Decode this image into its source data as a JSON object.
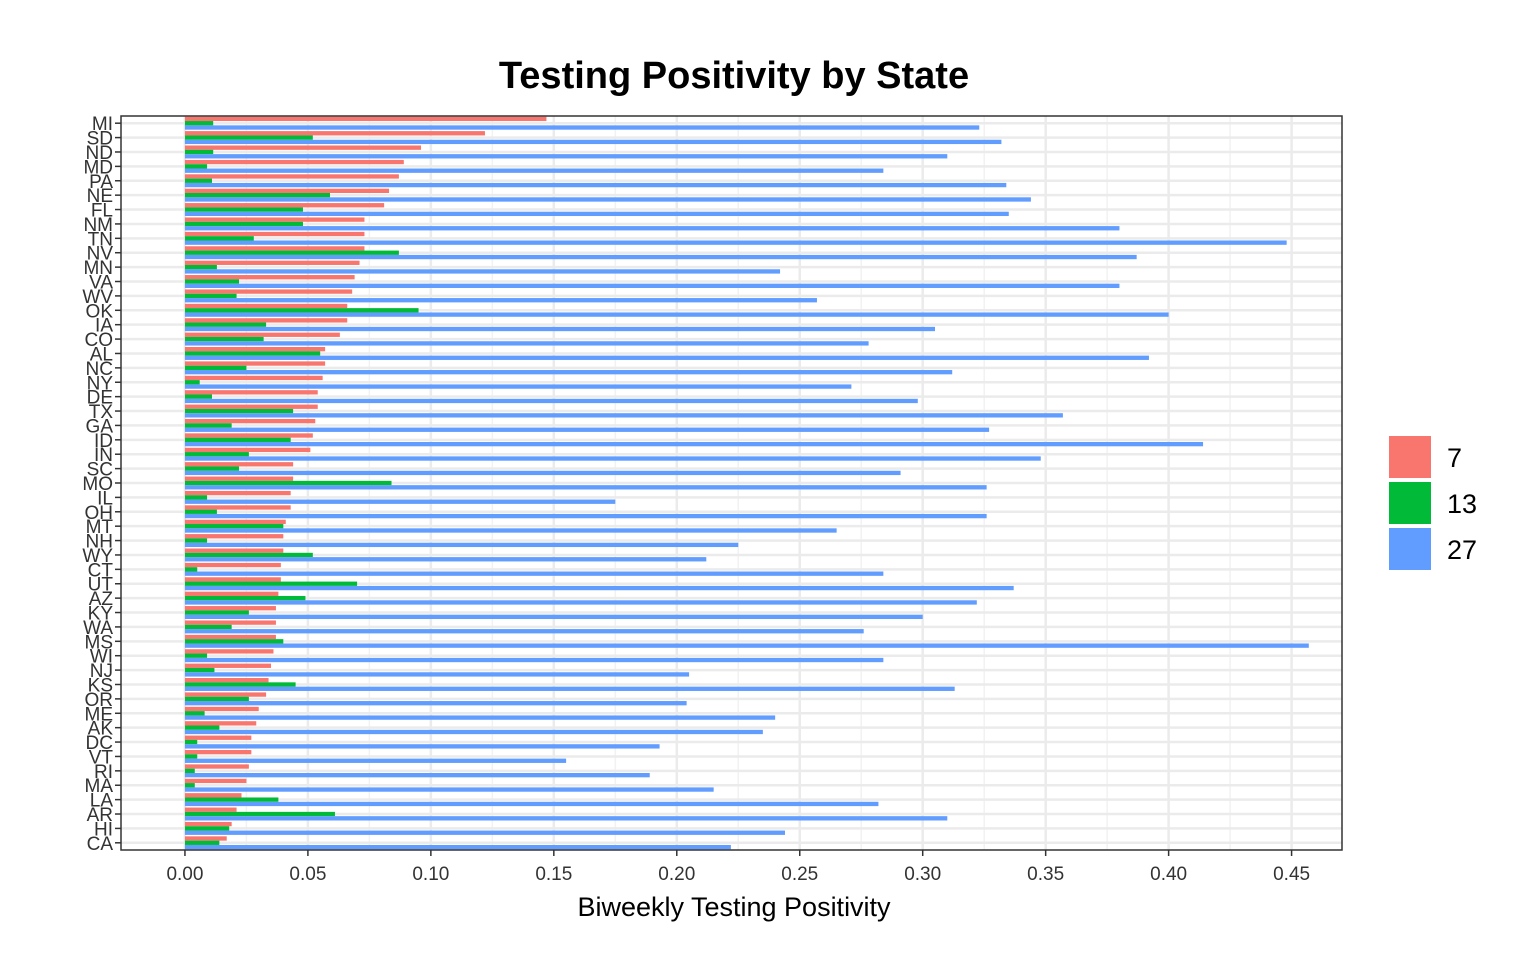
{
  "chart_data": {
    "type": "bar",
    "orientation": "horizontal",
    "title": "Testing Positivity by State",
    "xlabel": "Biweekly Testing Positivity",
    "ylabel": "",
    "xlim": [
      -0.026,
      0.4705
    ],
    "x_ticks": [
      "0.00",
      "0.05",
      "0.10",
      "0.15",
      "0.20",
      "0.25",
      "0.30",
      "0.35",
      "0.40",
      "0.45"
    ],
    "grid": true,
    "legend_position": "right",
    "categories": [
      "MI",
      "SD",
      "ND",
      "MD",
      "PA",
      "NE",
      "FL",
      "NM",
      "TN",
      "NV",
      "MN",
      "VA",
      "WV",
      "OK",
      "IA",
      "CO",
      "AL",
      "NC",
      "NY",
      "DE",
      "TX",
      "GA",
      "ID",
      "IN",
      "SC",
      "MO",
      "IL",
      "OH",
      "MT",
      "NH",
      "WY",
      "CT",
      "UT",
      "AZ",
      "KY",
      "WA",
      "MS",
      "WI",
      "NJ",
      "KS",
      "OR",
      "ME",
      "AK",
      "DC",
      "VT",
      "RI",
      "MA",
      "LA",
      "AR",
      "HI",
      "CA"
    ],
    "series": [
      {
        "name": "7",
        "color": "#F8766D",
        "values": [
          0.147,
          0.122,
          0.096,
          0.089,
          0.087,
          0.083,
          0.081,
          0.073,
          0.073,
          0.073,
          0.071,
          0.069,
          0.068,
          0.066,
          0.066,
          0.063,
          0.057,
          0.057,
          0.056,
          0.054,
          0.054,
          0.053,
          0.052,
          0.051,
          0.044,
          0.044,
          0.043,
          0.043,
          0.041,
          0.04,
          0.04,
          0.039,
          0.039,
          0.038,
          0.037,
          0.037,
          0.037,
          0.036,
          0.035,
          0.034,
          0.033,
          0.03,
          0.029,
          0.027,
          0.027,
          0.026,
          0.025,
          0.023,
          0.021,
          0.019,
          0.017
        ]
      },
      {
        "name": "13",
        "color": "#00BA38",
        "values": [
          0.0115,
          0.052,
          0.0115,
          0.009,
          0.011,
          0.059,
          0.048,
          0.048,
          0.028,
          0.087,
          0.013,
          0.022,
          0.021,
          0.095,
          0.033,
          0.032,
          0.055,
          0.025,
          0.006,
          0.011,
          0.044,
          0.019,
          0.043,
          0.026,
          0.022,
          0.084,
          0.009,
          0.013,
          0.04,
          0.009,
          0.052,
          0.005,
          0.07,
          0.049,
          0.026,
          0.019,
          0.04,
          0.009,
          0.012,
          0.045,
          0.026,
          0.008,
          0.014,
          0.005,
          0.005,
          0.004,
          0.004,
          0.038,
          0.061,
          0.018,
          0.014
        ]
      },
      {
        "name": "27",
        "color": "#619CFF",
        "values": [
          0.323,
          0.332,
          0.31,
          0.284,
          0.334,
          0.344,
          0.335,
          0.38,
          0.448,
          0.387,
          0.242,
          0.38,
          0.257,
          0.4,
          0.305,
          0.278,
          0.392,
          0.312,
          0.271,
          0.298,
          0.357,
          0.327,
          0.414,
          0.348,
          0.291,
          0.326,
          0.175,
          0.326,
          0.265,
          0.225,
          0.212,
          0.284,
          0.337,
          0.322,
          0.3,
          0.276,
          0.457,
          0.284,
          0.205,
          0.313,
          0.204,
          0.24,
          0.235,
          0.193,
          0.155,
          0.189,
          0.215,
          0.282,
          0.31,
          0.244,
          0.222
        ]
      }
    ]
  }
}
